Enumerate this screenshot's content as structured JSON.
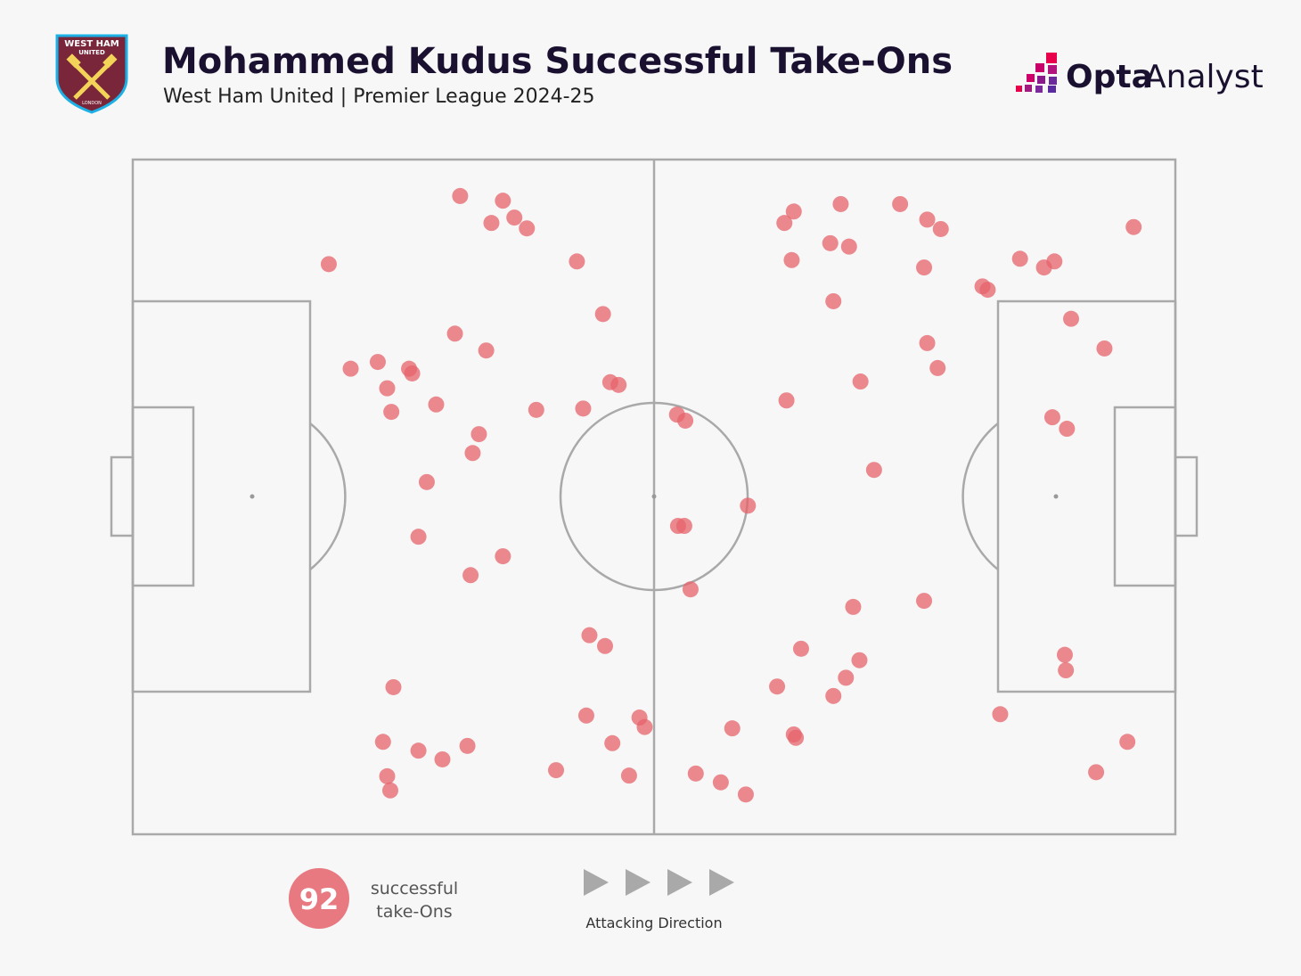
{
  "badge": {
    "top": "WEST HAM",
    "middle": "UNITED",
    "bottom": "LONDON"
  },
  "branding": {
    "opta": "Opta",
    "analyst": "Analyst"
  },
  "chart_data": {
    "type": "scatter",
    "title": "Mohammed Kudus Successful Take-Ons",
    "subtitle": "West Ham United | Premier League 2024-25",
    "xlim": [
      0,
      100
    ],
    "ylim": [
      0,
      100
    ],
    "color": "#e5636b",
    "x": [
      31.4,
      35.5,
      34.4,
      36.6,
      37.8,
      18.8,
      42.6,
      45.1,
      30.9,
      33.9,
      20.9,
      23.5,
      26.5,
      26.8,
      24.4,
      24.8,
      29.1,
      38.7,
      43.2,
      45.8,
      46.6,
      33.2,
      32.6,
      28.2,
      27.4,
      35.5,
      32.4,
      52.2,
      53.0,
      59.0,
      52.3,
      52.9,
      53.5,
      43.8,
      45.3,
      25.0,
      24.0,
      27.4,
      29.7,
      32.1,
      24.4,
      24.7,
      43.5,
      48.6,
      49.1,
      46.0,
      40.6,
      47.6,
      54.0,
      56.4,
      58.8,
      57.5,
      63.4,
      63.6,
      61.8,
      64.1,
      67.2,
      68.4,
      69.7,
      69.1,
      75.9,
      63.4,
      62.5,
      67.9,
      73.6,
      76.2,
      77.5,
      66.9,
      68.7,
      63.2,
      75.9,
      67.2,
      81.5,
      82.0,
      85.1,
      87.4,
      88.4,
      96.0,
      90.0,
      93.2,
      76.2,
      77.2,
      69.8,
      62.7,
      88.2,
      89.6,
      71.1,
      89.4,
      89.5,
      83.2,
      95.4,
      92.4
    ],
    "y": [
      94.6,
      93.9,
      90.6,
      91.4,
      89.8,
      84.5,
      84.9,
      77.1,
      74.2,
      71.7,
      69.0,
      70.0,
      69.0,
      68.3,
      66.1,
      62.6,
      63.7,
      62.9,
      63.1,
      67.0,
      66.6,
      59.3,
      56.5,
      52.2,
      44.1,
      41.2,
      38.4,
      62.2,
      61.3,
      48.7,
      45.7,
      45.7,
      36.3,
      29.5,
      27.9,
      21.8,
      13.7,
      12.4,
      11.1,
      13.1,
      8.6,
      6.5,
      17.6,
      17.3,
      15.9,
      13.5,
      9.5,
      8.7,
      9.0,
      7.7,
      5.9,
      15.7,
      14.8,
      14.3,
      21.9,
      27.5,
      20.5,
      23.2,
      25.8,
      33.7,
      34.6,
      92.3,
      90.6,
      93.4,
      93.4,
      91.1,
      89.7,
      87.6,
      87.1,
      85.1,
      84.0,
      79.0,
      81.2,
      80.7,
      85.3,
      84.0,
      84.9,
      90.0,
      76.4,
      72.0,
      72.8,
      69.1,
      67.1,
      64.3,
      61.8,
      60.1,
      54.0,
      26.6,
      24.3,
      17.8,
      13.7,
      9.2
    ],
    "total": 92,
    "total_label": [
      "successful",
      "take-Ons"
    ],
    "direction_label": "Attacking Direction"
  }
}
